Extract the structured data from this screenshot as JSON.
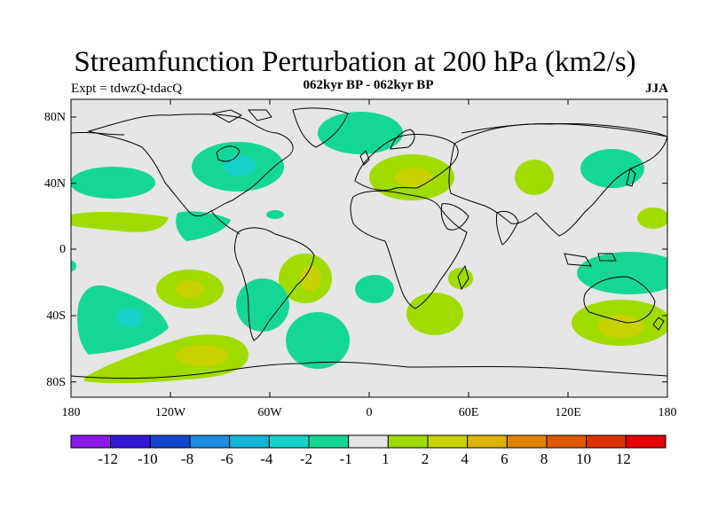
{
  "title": "Streamfunction Perturbation at 200 hPa (km2/s)",
  "left_string": "Expt = tdwzQ-tdacQ",
  "center_string": "062kyr BP - 062kyr BP",
  "right_string": "JJA",
  "map": {
    "projection": "cylindrical equidistant",
    "background_color": "#e6e6e6",
    "lat_ticks": [
      "80N",
      "40N",
      "0",
      "40S",
      "80S"
    ],
    "lon_ticks": [
      "180",
      "120W",
      "60W",
      "0",
      "60E",
      "120E",
      "180"
    ]
  },
  "colorbar": {
    "labels": [
      "-12",
      "-10",
      "-8",
      "-6",
      "-4",
      "-2",
      "-1",
      "1",
      "2",
      "4",
      "6",
      "8",
      "10",
      "12"
    ],
    "colors": [
      "#8a19e6",
      "#3219d8",
      "#1446cc",
      "#1e8ce0",
      "#14b4d4",
      "#14d2c8",
      "#14d796",
      "#e6e6e6",
      "#a0dc00",
      "#c8d200",
      "#dcb400",
      "#e08200",
      "#e05a00",
      "#e03200",
      "#e60000"
    ]
  }
}
